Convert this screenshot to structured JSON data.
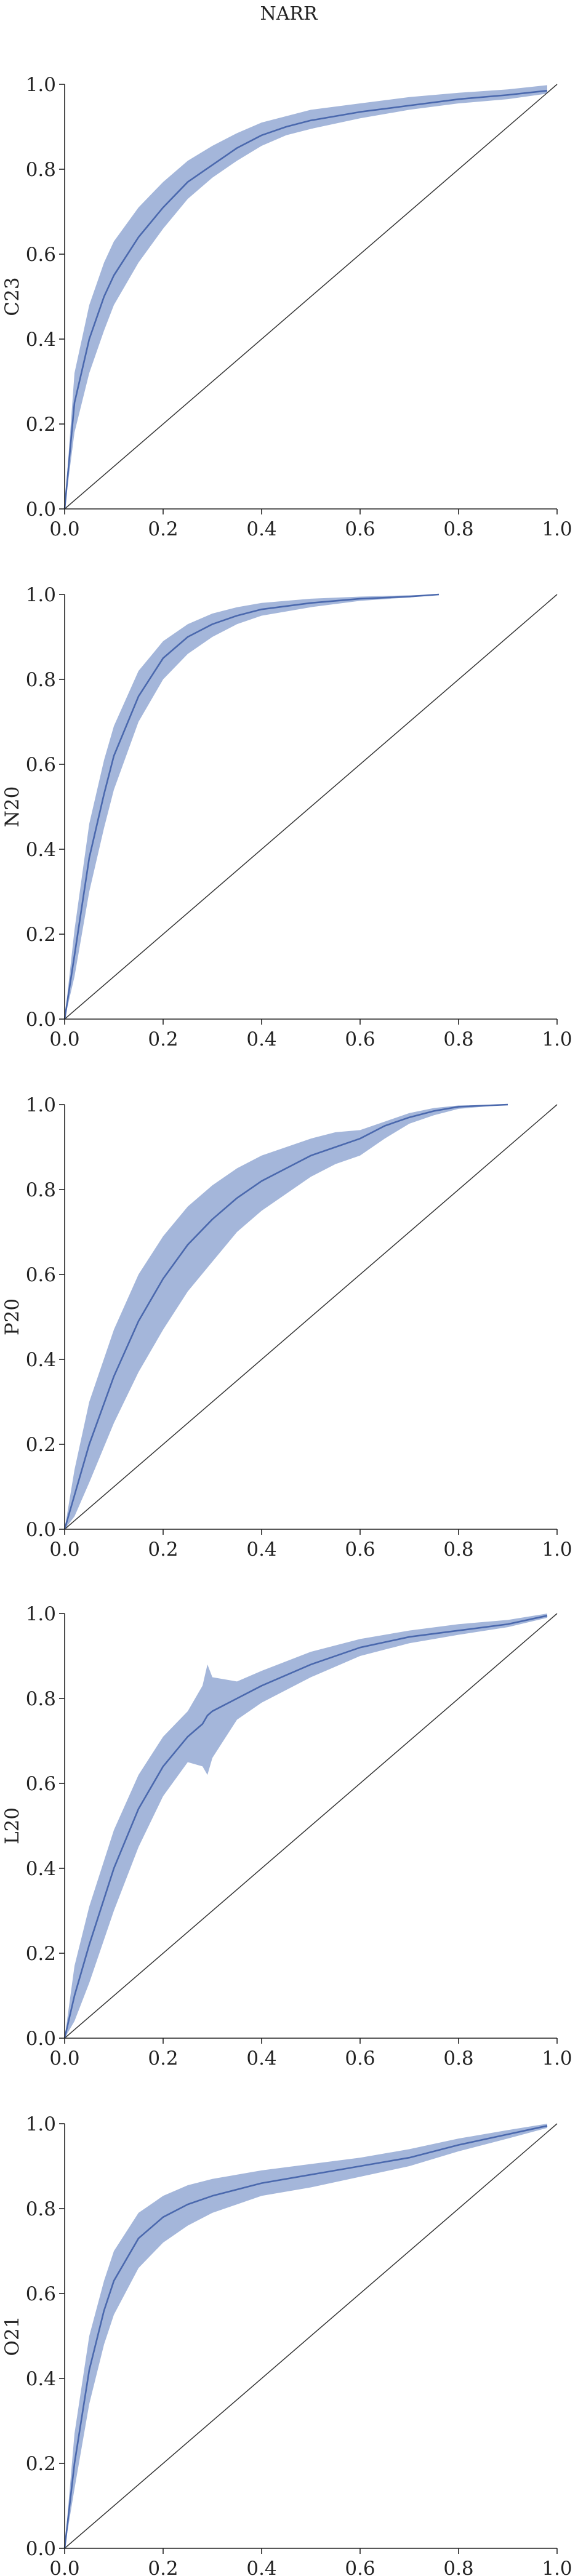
{
  "figure": {
    "title": "NARR"
  },
  "colors": {
    "band": "#9fb2d8",
    "line": "#4a68ad",
    "diagonal": "#333333",
    "axes": "#222222"
  },
  "chart_data": [
    {
      "type": "line",
      "ylabel": "C23",
      "xlabel": "",
      "xlim": [
        0,
        1
      ],
      "ylim": [
        0,
        1
      ],
      "xticks": [
        "0.0",
        "0.2",
        "0.4",
        "0.6",
        "0.8",
        "1.0"
      ],
      "yticks": [
        "0.0",
        "0.2",
        "0.4",
        "0.6",
        "0.8",
        "1.0"
      ],
      "grid": false,
      "legend": "none",
      "reference_line": {
        "x": [
          0,
          1
        ],
        "y": [
          0,
          1
        ]
      },
      "x": [
        0.0,
        0.02,
        0.05,
        0.08,
        0.1,
        0.15,
        0.2,
        0.25,
        0.3,
        0.35,
        0.4,
        0.45,
        0.5,
        0.6,
        0.7,
        0.8,
        0.9,
        0.98
      ],
      "y": [
        0.0,
        0.25,
        0.4,
        0.5,
        0.55,
        0.64,
        0.71,
        0.77,
        0.81,
        0.85,
        0.88,
        0.9,
        0.915,
        0.935,
        0.95,
        0.965,
        0.975,
        0.985
      ],
      "y_lo": [
        0.0,
        0.18,
        0.32,
        0.42,
        0.48,
        0.58,
        0.66,
        0.73,
        0.78,
        0.82,
        0.855,
        0.88,
        0.895,
        0.92,
        0.94,
        0.955,
        0.965,
        0.978
      ],
      "y_hi": [
        0.0,
        0.32,
        0.48,
        0.58,
        0.63,
        0.71,
        0.77,
        0.82,
        0.855,
        0.885,
        0.91,
        0.925,
        0.94,
        0.955,
        0.97,
        0.98,
        0.988,
        0.998
      ]
    },
    {
      "type": "line",
      "ylabel": "N20",
      "xlabel": "",
      "xlim": [
        0,
        1
      ],
      "ylim": [
        0,
        1
      ],
      "xticks": [
        "0.0",
        "0.2",
        "0.4",
        "0.6",
        "0.8",
        "1.0"
      ],
      "yticks": [
        "0.0",
        "0.2",
        "0.4",
        "0.6",
        "0.8",
        "1.0"
      ],
      "grid": false,
      "legend": "none",
      "reference_line": {
        "x": [
          0,
          1
        ],
        "y": [
          0,
          1
        ]
      },
      "x": [
        0.0,
        0.02,
        0.05,
        0.08,
        0.1,
        0.15,
        0.2,
        0.25,
        0.3,
        0.35,
        0.4,
        0.5,
        0.6,
        0.7,
        0.76
      ],
      "y": [
        0.0,
        0.15,
        0.38,
        0.53,
        0.62,
        0.76,
        0.85,
        0.9,
        0.93,
        0.95,
        0.965,
        0.98,
        0.99,
        0.995,
        1.0
      ],
      "y_lo": [
        0.0,
        0.1,
        0.3,
        0.45,
        0.54,
        0.7,
        0.8,
        0.86,
        0.9,
        0.93,
        0.95,
        0.97,
        0.985,
        0.993,
        1.0
      ],
      "y_hi": [
        0.0,
        0.21,
        0.46,
        0.61,
        0.69,
        0.82,
        0.89,
        0.93,
        0.955,
        0.97,
        0.98,
        0.99,
        0.995,
        0.998,
        1.0
      ]
    },
    {
      "type": "line",
      "ylabel": "P20",
      "xlabel": "",
      "xlim": [
        0,
        1
      ],
      "ylim": [
        0,
        1
      ],
      "xticks": [
        "0.0",
        "0.2",
        "0.4",
        "0.6",
        "0.8",
        "1.0"
      ],
      "yticks": [
        "0.0",
        "0.2",
        "0.4",
        "0.6",
        "0.8",
        "1.0"
      ],
      "grid": false,
      "legend": "none",
      "reference_line": {
        "x": [
          0,
          1
        ],
        "y": [
          0,
          1
        ]
      },
      "x": [
        0.0,
        0.02,
        0.05,
        0.1,
        0.15,
        0.2,
        0.25,
        0.3,
        0.35,
        0.4,
        0.45,
        0.5,
        0.55,
        0.6,
        0.65,
        0.7,
        0.75,
        0.8,
        0.9
      ],
      "y": [
        0.0,
        0.08,
        0.2,
        0.36,
        0.49,
        0.59,
        0.67,
        0.73,
        0.78,
        0.82,
        0.85,
        0.88,
        0.9,
        0.92,
        0.95,
        0.97,
        0.985,
        0.995,
        1.0
      ],
      "y_lo": [
        0.0,
        0.03,
        0.11,
        0.25,
        0.37,
        0.47,
        0.56,
        0.63,
        0.7,
        0.75,
        0.79,
        0.83,
        0.86,
        0.88,
        0.92,
        0.955,
        0.975,
        0.99,
        1.0
      ],
      "y_hi": [
        0.0,
        0.14,
        0.3,
        0.47,
        0.6,
        0.69,
        0.76,
        0.81,
        0.85,
        0.88,
        0.9,
        0.92,
        0.935,
        0.94,
        0.96,
        0.98,
        0.992,
        0.998,
        1.0
      ]
    },
    {
      "type": "line",
      "ylabel": "L20",
      "xlabel": "",
      "xlim": [
        0,
        1
      ],
      "ylim": [
        0,
        1
      ],
      "xticks": [
        "0.0",
        "0.2",
        "0.4",
        "0.6",
        "0.8",
        "1.0"
      ],
      "yticks": [
        "0.0",
        "0.2",
        "0.4",
        "0.6",
        "0.8",
        "1.0"
      ],
      "grid": false,
      "legend": "none",
      "reference_line": {
        "x": [
          0,
          1
        ],
        "y": [
          0,
          1
        ]
      },
      "x": [
        0.0,
        0.02,
        0.05,
        0.1,
        0.15,
        0.2,
        0.25,
        0.28,
        0.29,
        0.3,
        0.35,
        0.4,
        0.5,
        0.6,
        0.7,
        0.8,
        0.9,
        0.98
      ],
      "y": [
        0.0,
        0.1,
        0.22,
        0.4,
        0.54,
        0.64,
        0.71,
        0.74,
        0.76,
        0.77,
        0.8,
        0.83,
        0.88,
        0.92,
        0.945,
        0.96,
        0.975,
        0.995
      ],
      "y_lo": [
        0.0,
        0.04,
        0.13,
        0.3,
        0.45,
        0.57,
        0.65,
        0.64,
        0.62,
        0.66,
        0.75,
        0.79,
        0.85,
        0.9,
        0.93,
        0.95,
        0.968,
        0.99
      ],
      "y_hi": [
        0.0,
        0.17,
        0.31,
        0.49,
        0.62,
        0.71,
        0.77,
        0.83,
        0.88,
        0.85,
        0.84,
        0.865,
        0.91,
        0.94,
        0.96,
        0.975,
        0.985,
        1.0
      ]
    },
    {
      "type": "line",
      "ylabel": "O21",
      "xlabel": "",
      "xlim": [
        0,
        1
      ],
      "ylim": [
        0,
        1
      ],
      "xticks": [
        "0.0",
        "0.2",
        "0.4",
        "0.6",
        "0.8",
        "1.0"
      ],
      "yticks": [
        "0.0",
        "0.2",
        "0.4",
        "0.6",
        "0.8",
        "1.0"
      ],
      "grid": false,
      "legend": "none",
      "reference_line": {
        "x": [
          0,
          1
        ],
        "y": [
          0,
          1
        ]
      },
      "x": [
        0.0,
        0.02,
        0.05,
        0.08,
        0.1,
        0.15,
        0.2,
        0.25,
        0.3,
        0.4,
        0.5,
        0.6,
        0.7,
        0.8,
        0.9,
        0.98
      ],
      "y": [
        0.0,
        0.2,
        0.42,
        0.56,
        0.63,
        0.73,
        0.78,
        0.81,
        0.83,
        0.86,
        0.88,
        0.9,
        0.92,
        0.95,
        0.975,
        0.995
      ],
      "y_lo": [
        0.0,
        0.14,
        0.34,
        0.48,
        0.55,
        0.66,
        0.72,
        0.76,
        0.79,
        0.83,
        0.85,
        0.875,
        0.9,
        0.935,
        0.965,
        0.99
      ],
      "y_hi": [
        0.0,
        0.27,
        0.5,
        0.63,
        0.7,
        0.79,
        0.83,
        0.855,
        0.87,
        0.89,
        0.905,
        0.92,
        0.94,
        0.965,
        0.985,
        1.0
      ]
    }
  ]
}
